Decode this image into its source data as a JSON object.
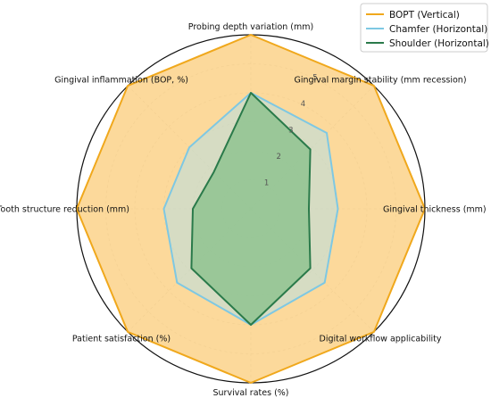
{
  "chart_data": {
    "type": "radar",
    "axes": [
      "Probing depth variation (mm)",
      "Gingival margin stability (mm recession)",
      "Gingival thickness (mm)",
      "Digital workflow applicability",
      "Survival rates (%)",
      "Patient satisfaction (%)",
      "Tooth structure reduction (mm)",
      "Gingival inflammation (BOP, %)"
    ],
    "rlim": [
      0,
      6
    ],
    "rticks": [
      "1",
      "2",
      "3",
      "4",
      "5"
    ],
    "grid": true,
    "legend_position": "top-right",
    "series": [
      {
        "name": "BOPT (Vertical)",
        "color": "#f0a81c",
        "fill": "#fcd28a",
        "values": [
          6,
          6,
          6,
          6,
          6,
          6,
          6,
          6
        ]
      },
      {
        "name": "Chamfer (Horizontal)",
        "color": "#7ec8e3",
        "fill": "#b7dfe3",
        "values": [
          4,
          3.7,
          3,
          3.6,
          4,
          3.6,
          3,
          3
        ]
      },
      {
        "name": "Shoulder (Horizontal)",
        "color": "#2a7a4a",
        "fill": "#86c08a",
        "values": [
          4,
          2.9,
          2,
          2.9,
          4,
          2.9,
          2,
          1.8
        ]
      }
    ]
  }
}
